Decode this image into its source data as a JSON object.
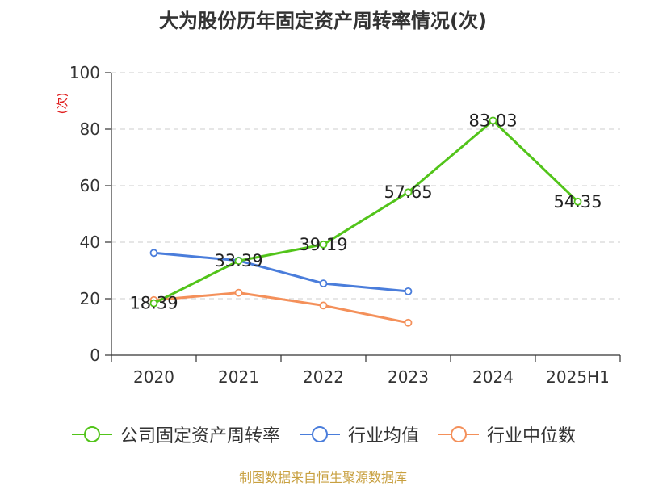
{
  "chart_data": {
    "type": "line",
    "title": "大为股份历年固定资产周转率情况(次)",
    "ylabel": "(次)",
    "xlabel": "",
    "categories": [
      "2020",
      "2021",
      "2022",
      "2023",
      "2024",
      "2025H1"
    ],
    "ylim": [
      0,
      100
    ],
    "yticks": [
      0,
      20,
      40,
      60,
      80,
      100
    ],
    "grid": true,
    "legend_position": "bottom",
    "series": [
      {
        "name": "公司固定资产周转率",
        "color": "#52C41A",
        "values": [
          18.39,
          33.39,
          39.19,
          57.65,
          83.03,
          54.35
        ],
        "labels": [
          "18.39",
          "33.39",
          "39.19",
          "57.65",
          "83.03",
          "54.35"
        ]
      },
      {
        "name": "行业均值",
        "color": "#4A7DDB",
        "values": [
          36.2,
          33.5,
          25.4,
          22.6,
          null,
          null
        ]
      },
      {
        "name": "行业中位数",
        "color": "#F4905A",
        "values": [
          19.5,
          22.1,
          17.6,
          11.5,
          null,
          null
        ]
      }
    ]
  },
  "source_text": "制图数据来自恒生聚源数据库"
}
